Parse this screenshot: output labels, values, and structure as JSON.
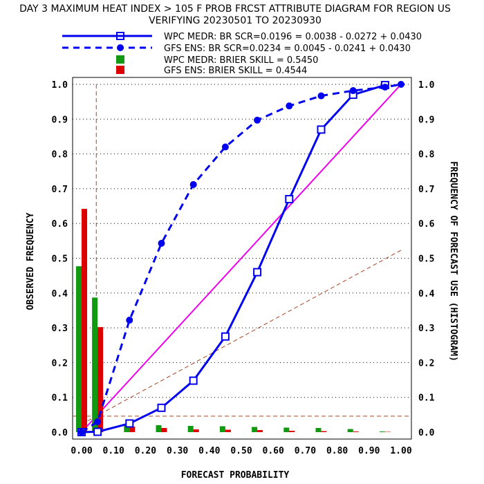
{
  "chart_data": {
    "type": "line",
    "title_line1": "DAY 3 MAXIMUM HEAT INDEX > 105 F PROB FRCST ATTRIBUTE DIAGRAM FOR REGION US",
    "title_line2": "VERIFYING 20230501 TO 20230930",
    "xlabel": "FORECAST PROBABILITY",
    "ylabel_left": "OBSERVED FREQUENCY",
    "ylabel_right": "FREQUENCY OF FORECAST USE (HISTOGRAM)",
    "xlim": [
      0,
      1
    ],
    "ylim": [
      0,
      1
    ],
    "x_ticks": [
      "0.00",
      "0.10",
      "0.20",
      "0.30",
      "0.40",
      "0.50",
      "0.60",
      "0.70",
      "0.80",
      "0.90",
      "1.00"
    ],
    "y_ticks": [
      "0.0",
      "0.1",
      "0.2",
      "0.3",
      "0.4",
      "0.5",
      "0.6",
      "0.7",
      "0.8",
      "0.9",
      "1.0"
    ],
    "y_ticks_right": [
      "0.0",
      "0.1",
      "0.2",
      "0.3",
      "0.4",
      "0.5",
      "0.6",
      "0.7",
      "0.8",
      "0.9",
      "1.0"
    ],
    "climatology": 0.046,
    "legend": [
      {
        "label": "WPC MEDR: BR SCR=0.0196 = 0.0038 - 0.0272 + 0.0430",
        "style": "solid-square"
      },
      {
        "label": "GFS ENS: BR SCR=0.0234 = 0.0045 - 0.0241 + 0.0430",
        "style": "dashed-circle"
      },
      {
        "label": "WPC MEDR:  BRIER SKILL = 0.5450",
        "style": "green-bar"
      },
      {
        "label": "GFS ENS:  BRIER SKILL = 0.4544",
        "style": "red-bar"
      }
    ],
    "series": [
      {
        "name": "WPC MEDR",
        "color": "#0000ee",
        "x": [
          0.0,
          0.05,
          0.15,
          0.25,
          0.35,
          0.45,
          0.55,
          0.65,
          0.75,
          0.85,
          0.95
        ],
        "values": [
          0.0,
          0.001,
          0.025,
          0.07,
          0.148,
          0.275,
          0.46,
          0.67,
          0.87,
          0.97,
          0.998
        ]
      },
      {
        "name": "GFS ENS",
        "color": "#0000ee",
        "x": [
          0.0,
          0.05,
          0.15,
          0.25,
          0.35,
          0.45,
          0.55,
          0.65,
          0.75,
          0.85,
          0.95,
          1.0
        ],
        "values": [
          0.0,
          0.03,
          0.322,
          0.543,
          0.712,
          0.82,
          0.897,
          0.938,
          0.967,
          0.982,
          0.992,
          1.0
        ]
      }
    ],
    "histogram": [
      {
        "name": "WPC MEDR",
        "color": "#119911",
        "x": [
          0.0,
          0.05,
          0.15,
          0.25,
          0.35,
          0.45,
          0.55,
          0.65,
          0.75,
          0.85,
          0.95
        ],
        "values": [
          0.477,
          0.387,
          0.022,
          0.02,
          0.018,
          0.017,
          0.015,
          0.013,
          0.012,
          0.009,
          0.002
        ]
      },
      {
        "name": "GFS ENS",
        "color": "#dd0000",
        "x": [
          0.0,
          0.05,
          0.15,
          0.25,
          0.35,
          0.45,
          0.55,
          0.65,
          0.75,
          0.85,
          0.95
        ],
        "values": [
          0.642,
          0.302,
          0.016,
          0.012,
          0.008,
          0.007,
          0.006,
          0.004,
          0.003,
          0.002,
          0.001
        ]
      }
    ],
    "colors": {
      "diagonal": "#ee00ee",
      "reference": "#aa4422",
      "series": "#0000ee"
    }
  }
}
